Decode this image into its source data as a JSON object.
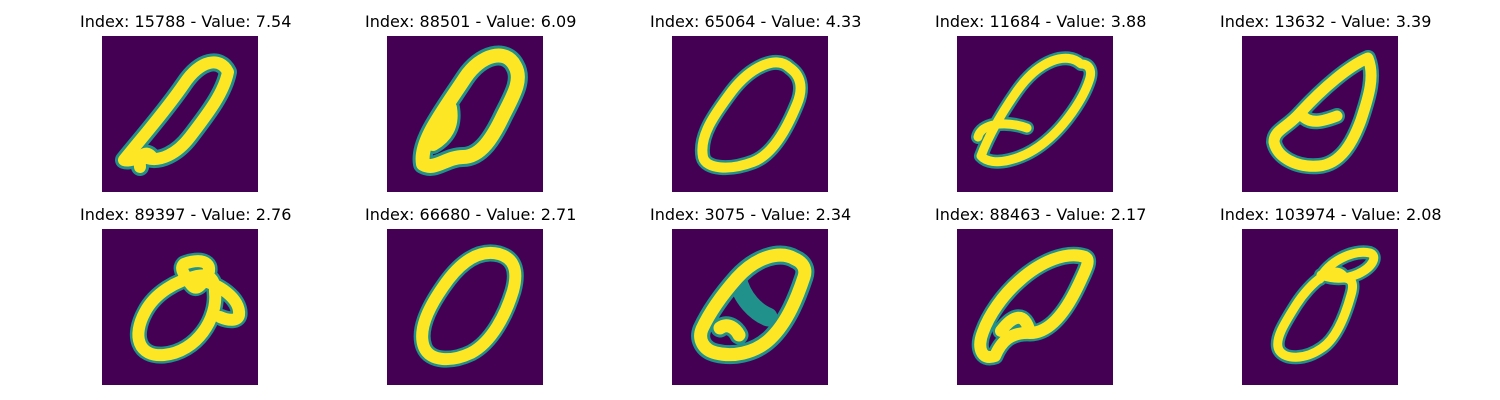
{
  "colormap": {
    "background": "#440154",
    "dark_edge": "#3b528b",
    "mid_edge": "#21918c",
    "light_edge": "#5ec962",
    "stroke": "#fde725"
  },
  "panels": [
    {
      "title": "Index: 15788 - Value: 7.54",
      "index": 15788,
      "value": 7.54,
      "glyph": "zero"
    },
    {
      "title": "Index: 88501 - Value: 6.09",
      "index": 88501,
      "value": 6.09,
      "glyph": "zero"
    },
    {
      "title": "Index: 65064 - Value: 4.33",
      "index": 65064,
      "value": 4.33,
      "glyph": "zero"
    },
    {
      "title": "Index: 11684 - Value: 3.88",
      "index": 11684,
      "value": 3.88,
      "glyph": "zero"
    },
    {
      "title": "Index: 13632 - Value: 3.39",
      "index": 13632,
      "value": 3.39,
      "glyph": "zero"
    },
    {
      "title": "Index: 89397 - Value: 2.76",
      "index": 89397,
      "value": 2.76,
      "glyph": "zero"
    },
    {
      "title": "Index: 66680 - Value: 2.71",
      "index": 66680,
      "value": 2.71,
      "glyph": "zero"
    },
    {
      "title": "Index: 3075 - Value: 2.34",
      "index": 3075,
      "value": 2.34,
      "glyph": "zero"
    },
    {
      "title": "Index: 88463 - Value: 2.17",
      "index": 88463,
      "value": 2.17,
      "glyph": "zero"
    },
    {
      "title": "Index: 103974 - Value: 2.08",
      "index": 103974,
      "value": 2.08,
      "glyph": "zero"
    }
  ]
}
